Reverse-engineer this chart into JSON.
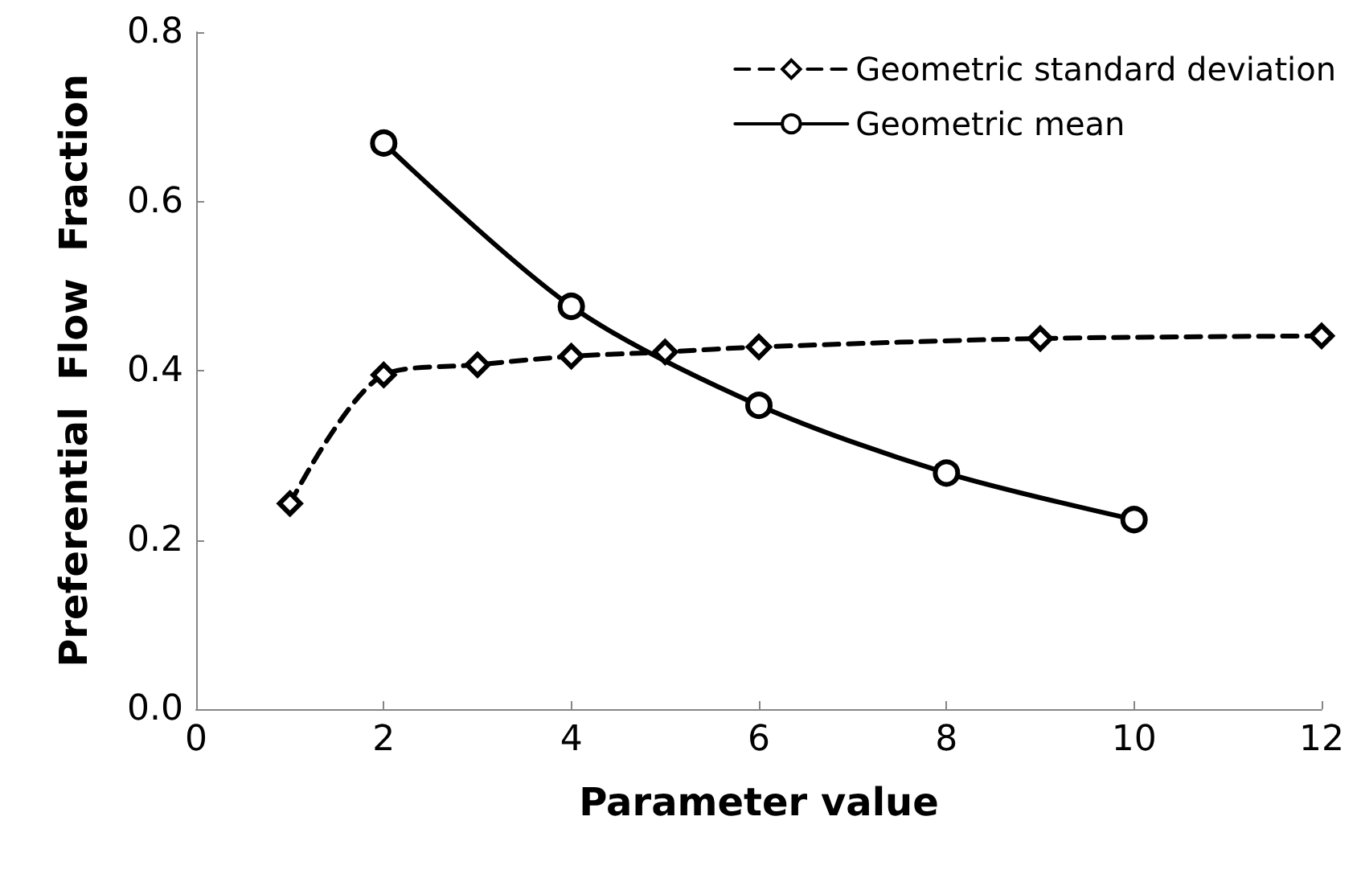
{
  "chart_data": {
    "type": "line",
    "xlabel": "Parameter value",
    "ylabel": "Preferential  Flow  Fraction",
    "xlim": [
      0,
      12
    ],
    "xticks": [
      0,
      2,
      4,
      6,
      8,
      10,
      12
    ],
    "ylim": [
      0,
      0.8
    ],
    "yticks": [
      {
        "value": 0,
        "label": "0.0"
      },
      0.2,
      0.4,
      0.6,
      0.8
    ],
    "grid": false,
    "legend": "top right",
    "series": [
      {
        "name": "Geometric standard deviation",
        "color": "#000000",
        "marker": "diamond",
        "line_style": "dashed",
        "x": [
          1,
          2,
          3,
          4,
          5,
          6,
          9,
          12
        ],
        "values": [
          0.243,
          0.395,
          0.407,
          0.417,
          0.422,
          0.428,
          0.438,
          0.441
        ]
      },
      {
        "name": "Geometric mean",
        "color": "#000000",
        "marker": "circle",
        "line_style": "solid",
        "x": [
          2,
          4,
          6,
          8,
          10
        ],
        "values": [
          0.669,
          0.476,
          0.359,
          0.279,
          0.224
        ]
      }
    ]
  }
}
